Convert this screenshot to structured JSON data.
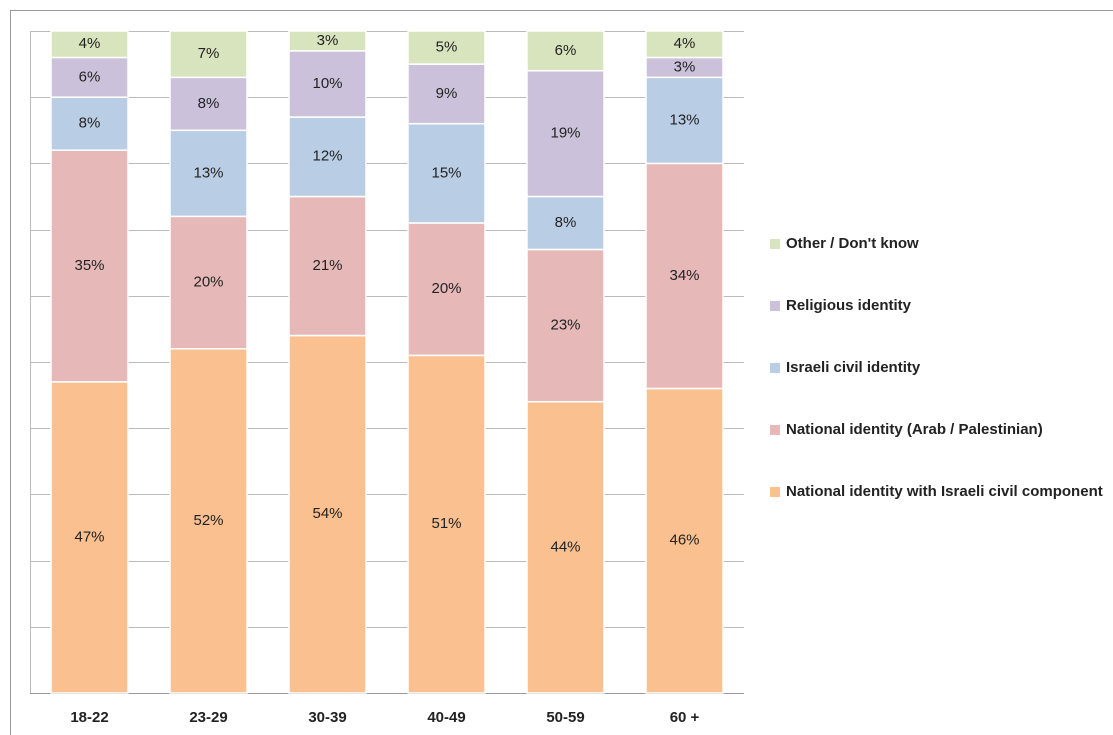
{
  "chart_data": {
    "type": "stacked_bar",
    "categories": [
      "18-22",
      "23-29",
      "30-39",
      "40-49",
      "50-59",
      "60 +"
    ],
    "series": [
      {
        "name": "National identity with Israeli civil component",
        "color": "#fac090",
        "values": [
          47,
          52,
          54,
          51,
          44,
          46
        ],
        "value_labels": [
          "47%",
          "52%",
          "54%",
          "51%",
          "44%",
          "46%"
        ]
      },
      {
        "name": "National identity (Arab / Palestinian)",
        "color": "#e6b9b8",
        "values": [
          35,
          20,
          21,
          20,
          23,
          34
        ],
        "value_labels": [
          "35%",
          "20%",
          "21%",
          "20%",
          "23%",
          "34%"
        ]
      },
      {
        "name": "Israeli civil identity",
        "color": "#b9cde5",
        "values": [
          8,
          13,
          12,
          15,
          8,
          13
        ],
        "value_labels": [
          "8%",
          "13%",
          "12%",
          "15%",
          "8%",
          "13%"
        ]
      },
      {
        "name": "Religious identity",
        "color": "#ccc1da",
        "values": [
          6,
          8,
          10,
          9,
          19,
          3
        ],
        "value_labels": [
          "6%",
          "8%",
          "10%",
          "9%",
          "19%",
          "3%"
        ]
      },
      {
        "name": "Other / Don't know",
        "color": "#d7e4bd",
        "values": [
          4,
          7,
          3,
          5,
          6,
          4
        ],
        "value_labels": [
          "4%",
          "7%",
          "3%",
          "5%",
          "6%",
          "4%"
        ]
      }
    ],
    "ylim": [
      0,
      100
    ],
    "yticks": [
      0,
      10,
      20,
      30,
      40,
      50,
      60,
      70,
      80,
      90,
      100
    ],
    "grid": true,
    "legend": "right"
  }
}
